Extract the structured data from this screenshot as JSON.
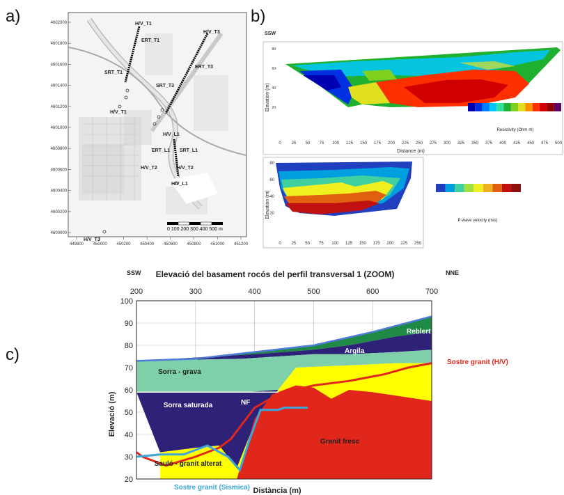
{
  "panel_labels": {
    "a": "a)",
    "b": "b)",
    "c": "c)"
  },
  "map": {
    "y_ticks": [
      "4602000",
      "4601800",
      "4601600",
      "4601400",
      "4601200",
      "4601000",
      "4600800",
      "4600600",
      "4600400",
      "4600200",
      "4600000"
    ],
    "x_ticks": [
      "449800",
      "450000",
      "450200",
      "450400",
      "450600",
      "450800",
      "451000",
      "451200"
    ],
    "labels": {
      "hv_t1": "H/V_T1",
      "ert_t1": "ERT_T1",
      "srt_t1": "SRT_T1",
      "hv_t3": "H/V_T3",
      "ert_t3": "ERT_T3",
      "srt_t3": "SRT_T3",
      "hv_t1b": "H/V_T1",
      "hv_l1": "H/V_L1",
      "ert_l1": "ERT_L1",
      "srt_l1": "SRT_L1",
      "hv_t2": "H/V_T2",
      "hv_t2b": "H/V_T2",
      "hv_l1b": "H/V_L1",
      "hv_t3b": "H/V_T3"
    },
    "scale_text": "0  100 200  300  400  500 m"
  },
  "panel_b": {
    "dir_left": "SSW",
    "ert": {
      "ylabel": "Elevation (m)",
      "xlabel": "Distance (m)",
      "x_ticks": [
        "0",
        "25",
        "50",
        "75",
        "100",
        "125",
        "150",
        "175",
        "200",
        "225",
        "250",
        "275",
        "300",
        "325",
        "350",
        "375",
        "400",
        "425",
        "450",
        "475",
        "500"
      ],
      "y_ticks": [
        "80",
        "60",
        "40",
        "20"
      ],
      "colorbar_title": "Resistivity (Ohm·m)",
      "colorbar_colors": [
        "#0000b0",
        "#0030e0",
        "#0080ff",
        "#00c8ff",
        "#30e0a0",
        "#20b030",
        "#80d020",
        "#e0e020",
        "#ff9000",
        "#ff3000",
        "#d00000",
        "#900000",
        "#600060"
      ]
    },
    "srt": {
      "ylabel": "Elevation (m)",
      "x_ticks": [
        "0",
        "25",
        "50",
        "75",
        "100",
        "125",
        "150",
        "175",
        "200",
        "225",
        "250"
      ],
      "y_ticks": [
        "80",
        "60",
        "40",
        "20"
      ],
      "colorbar_title": "P-wave velocity (m/s)",
      "colorbar_colors": [
        "#2040c0",
        "#00a0e0",
        "#40d0a0",
        "#a0e040",
        "#f0f020",
        "#f0b020",
        "#e06010",
        "#c01010",
        "#901010"
      ]
    }
  },
  "chart_data": {
    "type": "area",
    "title": "Elevació del basament rocós del perfil transversal 1 (ZOOM)",
    "dir_left": "SSW",
    "dir_right": "NNE",
    "xlabel": "Distància (m)",
    "ylabel": "Elevació (m)",
    "xlim": [
      200,
      700
    ],
    "ylim": [
      20,
      100
    ],
    "x_ticks": [
      200,
      300,
      400,
      500,
      600,
      700
    ],
    "y_ticks": [
      20,
      30,
      40,
      50,
      60,
      70,
      80,
      90,
      100
    ],
    "grid": true,
    "layers": [
      {
        "name": "Reblert",
        "color": "#1e8a46",
        "top": [
          [
            200,
            73
          ],
          [
            300,
            74
          ],
          [
            400,
            77
          ],
          [
            500,
            80
          ],
          [
            600,
            86
          ],
          [
            700,
            93
          ]
        ],
        "bottom": [
          [
            200,
            73
          ],
          [
            400,
            76
          ],
          [
            500,
            78
          ],
          [
            560,
            80
          ],
          [
            640,
            84
          ],
          [
            700,
            86
          ]
        ]
      },
      {
        "name": "Argila",
        "color": "#2d2278",
        "top": [
          [
            200,
            73
          ],
          [
            400,
            76
          ],
          [
            500,
            78
          ],
          [
            560,
            80
          ],
          [
            640,
            84
          ],
          [
            700,
            86
          ]
        ],
        "bottom": [
          [
            200,
            73
          ],
          [
            380,
            74
          ],
          [
            440,
            75
          ],
          [
            500,
            76
          ],
          [
            560,
            76
          ],
          [
            640,
            77
          ],
          [
            700,
            78
          ]
        ]
      },
      {
        "name": "Sorra - grava",
        "color": "#7ecfaa",
        "top": [
          [
            200,
            73
          ],
          [
            380,
            74
          ],
          [
            440,
            75
          ],
          [
            500,
            76
          ],
          [
            560,
            76
          ],
          [
            640,
            77
          ],
          [
            700,
            78
          ]
        ],
        "bottom": [
          [
            200,
            59
          ],
          [
            380,
            59
          ],
          [
            440,
            60
          ],
          [
            470,
            70
          ],
          [
            560,
            71
          ],
          [
            640,
            72
          ],
          [
            700,
            72
          ]
        ]
      },
      {
        "name": "Sorra saturada",
        "color": "#2d2278",
        "top": [
          [
            200,
            59
          ],
          [
            380,
            59
          ],
          [
            440,
            60
          ]
        ],
        "bottom": [
          [
            200,
            59
          ],
          [
            240,
            32
          ],
          [
            300,
            34
          ],
          [
            340,
            35
          ],
          [
            370,
            25
          ],
          [
            400,
            45
          ],
          [
            440,
            60
          ]
        ]
      },
      {
        "name": "Sauló - granit alterat",
        "color": "#ffff00",
        "top": [
          [
            240,
            32
          ],
          [
            300,
            34
          ],
          [
            340,
            35
          ],
          [
            370,
            25
          ],
          [
            400,
            45
          ],
          [
            440,
            60
          ],
          [
            470,
            70
          ],
          [
            560,
            71
          ],
          [
            640,
            72
          ],
          [
            700,
            72
          ]
        ],
        "bottom": [
          [
            240,
            20
          ],
          [
            700,
            20
          ]
        ]
      },
      {
        "name": "Granit fresc",
        "color": "#e1261c",
        "top": [
          [
            370,
            20
          ],
          [
            400,
            47
          ],
          [
            430,
            58
          ],
          [
            470,
            62
          ],
          [
            500,
            61
          ],
          [
            530,
            56
          ],
          [
            560,
            60
          ],
          [
            600,
            59
          ],
          [
            650,
            57
          ],
          [
            700,
            55
          ]
        ],
        "bottom": [
          [
            370,
            20
          ],
          [
            700,
            20
          ]
        ]
      }
    ],
    "lines": [
      {
        "name": "Sostre granit (H/V)",
        "color": "#e1261c",
        "points": [
          [
            200,
            32
          ],
          [
            205,
            31
          ],
          [
            210,
            30
          ],
          [
            250,
            26
          ],
          [
            300,
            30
          ],
          [
            340,
            34
          ],
          [
            360,
            38
          ],
          [
            400,
            52
          ],
          [
            440,
            58
          ],
          [
            500,
            62
          ],
          [
            560,
            64
          ],
          [
            620,
            67
          ],
          [
            660,
            70
          ],
          [
            700,
            72
          ]
        ]
      },
      {
        "name": "Sostre granit (Sismica)",
        "color": "#3aa6dc",
        "points": [
          [
            200,
            30
          ],
          [
            240,
            31
          ],
          [
            280,
            31
          ],
          [
            320,
            35
          ],
          [
            355,
            30
          ],
          [
            375,
            24
          ],
          [
            392,
            38
          ],
          [
            410,
            51
          ],
          [
            440,
            51
          ],
          [
            450,
            52
          ],
          [
            490,
            52
          ]
        ]
      },
      {
        "name": "NF",
        "color": "#ffffff",
        "points": [
          [
            200,
            59
          ],
          [
            440,
            59
          ]
        ]
      }
    ],
    "annotations": {
      "reblert": "Reblert",
      "argila": "Argila",
      "sorra_grava": "Sorra - grava",
      "sorra_saturada": "Sorra saturada",
      "nf": "NF",
      "saulo": "Sauló - granit alterat",
      "granit_fresc": "Granit fresc",
      "sostre_hv": "Sostre granit (H/V)",
      "sostre_sismica": "Sostre granit (Sismica)"
    }
  }
}
